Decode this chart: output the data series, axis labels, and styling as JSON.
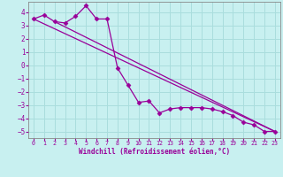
{
  "xlabel": "Windchill (Refroidissement éolien,°C)",
  "background_color": "#c8f0f0",
  "line_color": "#990099",
  "grid_color": "#aadddd",
  "spine_color": "#888888",
  "xlim": [
    -0.5,
    23.5
  ],
  "ylim": [
    -5.5,
    4.8
  ],
  "xticks": [
    0,
    1,
    2,
    3,
    4,
    5,
    6,
    7,
    8,
    9,
    10,
    11,
    12,
    13,
    14,
    15,
    16,
    17,
    18,
    19,
    20,
    21,
    22,
    23
  ],
  "yticks": [
    -5,
    -4,
    -3,
    -2,
    -1,
    0,
    1,
    2,
    3,
    4
  ],
  "data_x": [
    0,
    1,
    2,
    3,
    4,
    5,
    6,
    7,
    8,
    9,
    10,
    11,
    12,
    13,
    14,
    15,
    16,
    17,
    18,
    19,
    20,
    21,
    22,
    23
  ],
  "data_y": [
    3.5,
    3.8,
    3.3,
    3.2,
    3.7,
    4.5,
    3.5,
    3.5,
    -0.2,
    -1.5,
    -2.8,
    -2.7,
    -3.6,
    -3.3,
    -3.2,
    -3.2,
    -3.2,
    -3.3,
    -3.5,
    -3.8,
    -4.3,
    -4.5,
    -5.0,
    -5.0
  ],
  "line1_x": [
    0,
    23
  ],
  "line1_y": [
    3.5,
    -5.0
  ],
  "line2_x": [
    2,
    23
  ],
  "line2_y": [
    3.3,
    -5.0
  ]
}
